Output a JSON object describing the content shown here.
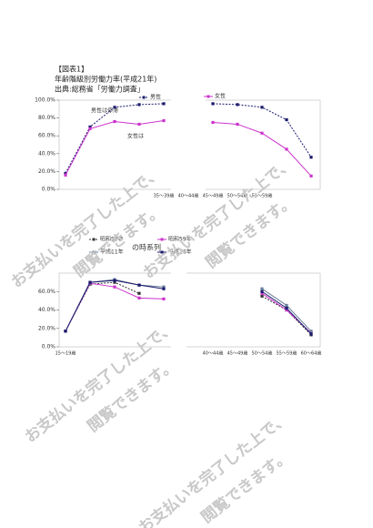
{
  "header": {
    "label": "【図表1】",
    "title": "年齢階級別労働力率(平成21年)",
    "source": "出典:総務省「労働力調査」"
  },
  "watermark": [
    "お支払いを完了した上で、",
    "閲覧できます。"
  ],
  "chart_data": [
    {
      "type": "line",
      "annotations": [
        "男性は停滞",
        "女性は"
      ],
      "categories": [
        null,
        null,
        null,
        null,
        "35～39歳",
        "40～44歳",
        "45～49歳",
        "50～54歳",
        "55～59歳",
        null,
        null
      ],
      "series": [
        {
          "name": "男性",
          "color": "#1a1a6e",
          "dashed": true,
          "values": [
            18,
            70,
            92,
            95,
            96,
            null,
            96,
            95,
            92,
            78,
            36
          ]
        },
        {
          "name": "女性",
          "color": "#cc33cc",
          "dashed": false,
          "values": [
            16,
            68,
            76,
            73,
            77,
            null,
            75,
            73,
            63,
            45,
            15
          ]
        }
      ],
      "ylim": [
        0,
        100
      ],
      "yticks": [
        {
          "value": 0,
          "label": "0.0%"
        },
        {
          "value": 20,
          "label": "20.0%"
        },
        {
          "value": 40,
          "label": "40.0%"
        },
        {
          "value": 60,
          "label": "60.0%"
        },
        {
          "value": 80,
          "label": "80.0%"
        },
        {
          "value": 100,
          "label": "100.0%"
        }
      ]
    },
    {
      "type": "line",
      "title": "の時系列",
      "categories": [
        "15～19歳",
        null,
        null,
        null,
        null,
        null,
        "40～44歳",
        "45～49歳",
        "50～54歳",
        "55～59歳",
        "60～64歳"
      ],
      "series": [
        {
          "name": "昭和54年",
          "color": "#333333",
          "dashed": true,
          "values": [
            17,
            68,
            70,
            58,
            null,
            null,
            null,
            null,
            55,
            40,
            13
          ]
        },
        {
          "name": "昭和59年",
          "color": "#cc33cc",
          "dashed": false,
          "values": [
            17,
            69,
            65,
            53,
            52,
            null,
            null,
            null,
            58,
            40,
            15
          ]
        },
        {
          "name": "平成11年",
          "color": "#6a7f99",
          "dashed": false,
          "values": [
            17,
            70,
            73,
            67,
            65,
            null,
            null,
            null,
            63,
            45,
            17
          ]
        },
        {
          "name": "平成16年",
          "color": "#1a1a6e",
          "dashed": false,
          "values": [
            17,
            70,
            72,
            67,
            63,
            null,
            null,
            null,
            60,
            42,
            14
          ]
        }
      ],
      "ylim": [
        0,
        80
      ],
      "yticks": [
        {
          "value": 0,
          "label": "0.0%"
        },
        {
          "value": 20,
          "label": "20.0%"
        },
        {
          "value": 40,
          "label": "40.0%"
        },
        {
          "value": 60,
          "label": "60.0%"
        }
      ]
    }
  ]
}
